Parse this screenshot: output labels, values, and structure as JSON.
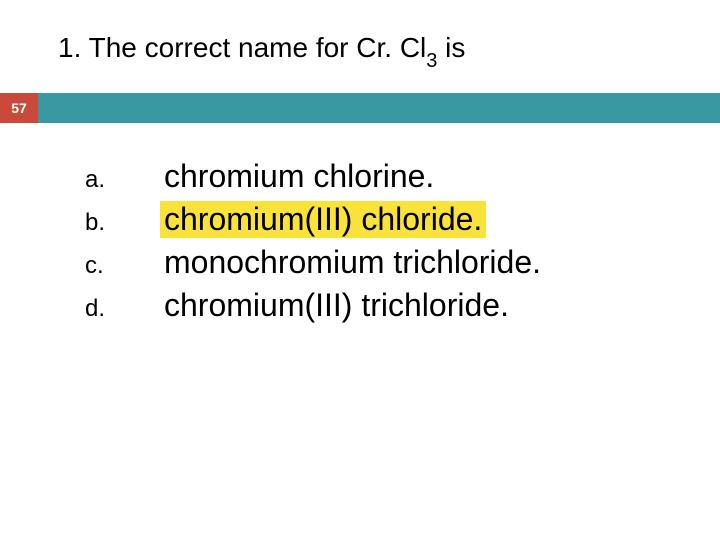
{
  "question": {
    "prefix": "1. The correct name for Cr. Cl",
    "subscript": "3",
    "suffix": " is"
  },
  "slide_number": "57",
  "badge_bg": "#c94a3b",
  "badge_fg": "#ffffff",
  "bar_bg": "#3a98a3",
  "highlight_bg": "#f9e33b",
  "answers": [
    {
      "letter": "a.",
      "text": "chromium chlorine.",
      "highlighted": false
    },
    {
      "letter": "b.",
      "text": "chromium(III) chloride.",
      "highlighted": true
    },
    {
      "letter": "c.",
      "text": "monochromium trichloride.",
      "highlighted": false
    },
    {
      "letter": "d.",
      "text": "chromium(III) trichloride.",
      "highlighted": false
    }
  ]
}
